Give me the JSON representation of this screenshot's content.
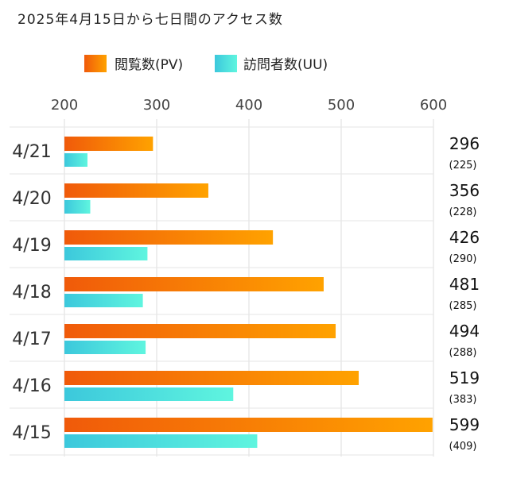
{
  "chart_data": {
    "type": "bar",
    "orientation": "horizontal",
    "title": "2025年4月15日から七日間のアクセス数",
    "categories": [
      "4/21",
      "4/20",
      "4/19",
      "4/18",
      "4/17",
      "4/16",
      "4/15"
    ],
    "series": [
      {
        "name": "閲覧数(PV)",
        "values": [
          296,
          356,
          426,
          481,
          494,
          519,
          599
        ],
        "color_start": "#f05a0a",
        "color_end": "#ffa200"
      },
      {
        "name": "訪問者数(UU)",
        "values": [
          225,
          228,
          290,
          285,
          288,
          383,
          409
        ],
        "color_start": "#3cc8dc",
        "color_end": "#5ff5df"
      }
    ],
    "value_labels": [
      "296",
      "356",
      "426",
      "481",
      "494",
      "519",
      "599"
    ],
    "sub_value_labels": [
      "(225)",
      "(228)",
      "(290)",
      "(285)",
      "(288)",
      "(383)",
      "(409)"
    ],
    "xlim": [
      200,
      600
    ],
    "xticks": [
      "200",
      "300",
      "400",
      "500",
      "600"
    ],
    "grid": true,
    "legend_position": "top"
  }
}
